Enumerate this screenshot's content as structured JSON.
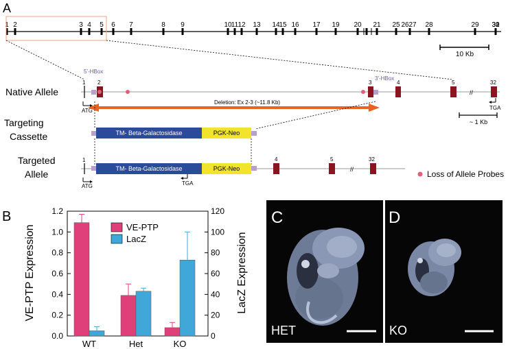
{
  "panels": {
    "A": "A",
    "B": "B",
    "C": "C",
    "D": "D"
  },
  "gene_map": {
    "exon_labels": [
      "1",
      "2",
      "3",
      "4",
      "5",
      "6",
      "7",
      "8",
      "9",
      "10",
      "11",
      "12",
      "13",
      "14",
      "15",
      "16",
      "17",
      "19",
      "20",
      "21",
      "25",
      "26",
      "27",
      "28",
      "29",
      "30",
      "31",
      "32"
    ],
    "scale_bar": "10 Kb"
  },
  "native": {
    "title": "Native Allele",
    "hbox5": "5'-HBox",
    "hbox3": "3'-HBox",
    "exons": [
      "1",
      "2",
      "3",
      "4",
      "5",
      "32"
    ],
    "atg": "ATG",
    "tga": "TGA",
    "deletion": "Deletion: Ex 2-3 (~11.8 Kb)",
    "scale": "~ 1 Kb"
  },
  "cassette": {
    "title": "Targeting Cassette",
    "tm": "TM- Beta-Galactosidase",
    "neo": "PGK-Neo"
  },
  "targeted": {
    "title": "Targeted Allele",
    "tm": "TM- Beta-Galactosidase",
    "neo": "PGK-Neo",
    "exons": [
      "1",
      "4",
      "5",
      "32"
    ],
    "atg": "ATG",
    "tga": "TGA"
  },
  "legend": {
    "probes": "Loss of Allele Probes"
  },
  "colors": {
    "exon": "#8b1420",
    "tm": "#2a4a9a",
    "neo": "#f2e42a",
    "arrow": "#e86420",
    "probe": "#e0607a",
    "hbox": "#b8a0c8",
    "vePTP": "#e0407a",
    "lacZ": "#40a8d8"
  },
  "chart_data": {
    "type": "bar",
    "categories": [
      "WT",
      "Het",
      "KO"
    ],
    "series": [
      {
        "name": "VE-PTP",
        "axis": "left",
        "values": [
          1.09,
          0.39,
          0.08
        ],
        "errors": [
          0.08,
          0.11,
          0.05
        ]
      },
      {
        "name": "LacZ",
        "axis": "right",
        "values": [
          5,
          43,
          73
        ],
        "errors": [
          4,
          3,
          27
        ]
      }
    ],
    "ylabel": "VE-PTP Expression",
    "y2label": "LacZ Expression",
    "ylim": [
      0,
      1.2
    ],
    "y2lim": [
      0,
      120
    ],
    "yticks": [
      "0.0",
      "0.2",
      "0.4",
      "0.6",
      "0.8",
      "1.0",
      "1.2"
    ],
    "y2ticks": [
      "0",
      "20",
      "40",
      "60",
      "80",
      "100",
      "120"
    ],
    "legend_position": "top-right"
  },
  "images": {
    "het": "HET",
    "ko": "KO"
  }
}
